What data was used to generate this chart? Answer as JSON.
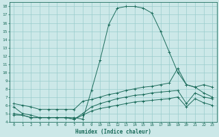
{
  "xlabel": "Humidex (Indice chaleur)",
  "background_color": "#cce8e8",
  "grid_color": "#99cccc",
  "line_color": "#1a6b5a",
  "xlim": [
    -0.5,
    23.5
  ],
  "ylim": [
    4,
    18.5
  ],
  "xticks": [
    0,
    1,
    2,
    3,
    4,
    5,
    6,
    7,
    8,
    9,
    10,
    11,
    12,
    13,
    14,
    15,
    16,
    17,
    18,
    19,
    20,
    21,
    22,
    23
  ],
  "yticks": [
    4,
    5,
    6,
    7,
    8,
    9,
    10,
    11,
    12,
    13,
    14,
    15,
    16,
    17,
    18
  ],
  "series1_x": [
    0,
    1,
    2,
    3,
    4,
    5,
    6,
    7,
    8,
    9,
    10,
    11,
    12,
    13,
    14,
    15,
    16,
    17,
    18,
    19,
    20,
    21,
    22,
    23
  ],
  "series1_y": [
    5.8,
    5.0,
    4.8,
    4.5,
    4.5,
    4.5,
    4.5,
    4.5,
    4.3,
    7.8,
    11.5,
    15.8,
    17.8,
    18.0,
    18.0,
    17.8,
    17.2,
    15.0,
    12.5,
    10.0,
    8.5,
    8.2,
    7.5,
    7.0
  ],
  "series2_x": [
    0,
    1,
    2,
    3,
    4,
    5,
    6,
    7,
    8,
    9,
    10,
    11,
    12,
    13,
    14,
    15,
    16,
    17,
    18,
    19,
    20,
    21,
    22,
    23
  ],
  "series2_y": [
    6.2,
    6.0,
    5.8,
    5.5,
    5.5,
    5.5,
    5.5,
    5.5,
    6.5,
    6.7,
    7.0,
    7.3,
    7.5,
    7.8,
    8.0,
    8.2,
    8.3,
    8.5,
    8.7,
    10.5,
    8.5,
    8.2,
    8.5,
    8.2
  ],
  "series3_x": [
    0,
    1,
    2,
    3,
    4,
    5,
    6,
    7,
    8,
    9,
    10,
    11,
    12,
    13,
    14,
    15,
    16,
    17,
    18,
    19,
    20,
    21,
    22,
    23
  ],
  "series3_y": [
    5.0,
    4.8,
    4.5,
    4.5,
    4.5,
    4.5,
    4.5,
    4.3,
    5.0,
    5.8,
    6.2,
    6.5,
    6.8,
    7.0,
    7.2,
    7.3,
    7.5,
    7.6,
    7.7,
    7.8,
    6.2,
    7.5,
    7.0,
    6.8
  ],
  "series4_x": [
    0,
    1,
    2,
    3,
    4,
    5,
    6,
    7,
    8,
    9,
    10,
    11,
    12,
    13,
    14,
    15,
    16,
    17,
    18,
    19,
    20,
    21,
    22,
    23
  ],
  "series4_y": [
    4.8,
    4.8,
    4.5,
    4.5,
    4.5,
    4.5,
    4.5,
    4.3,
    4.8,
    5.3,
    5.6,
    5.8,
    6.0,
    6.2,
    6.4,
    6.5,
    6.6,
    6.7,
    6.8,
    7.0,
    5.8,
    6.8,
    6.3,
    6.0
  ]
}
